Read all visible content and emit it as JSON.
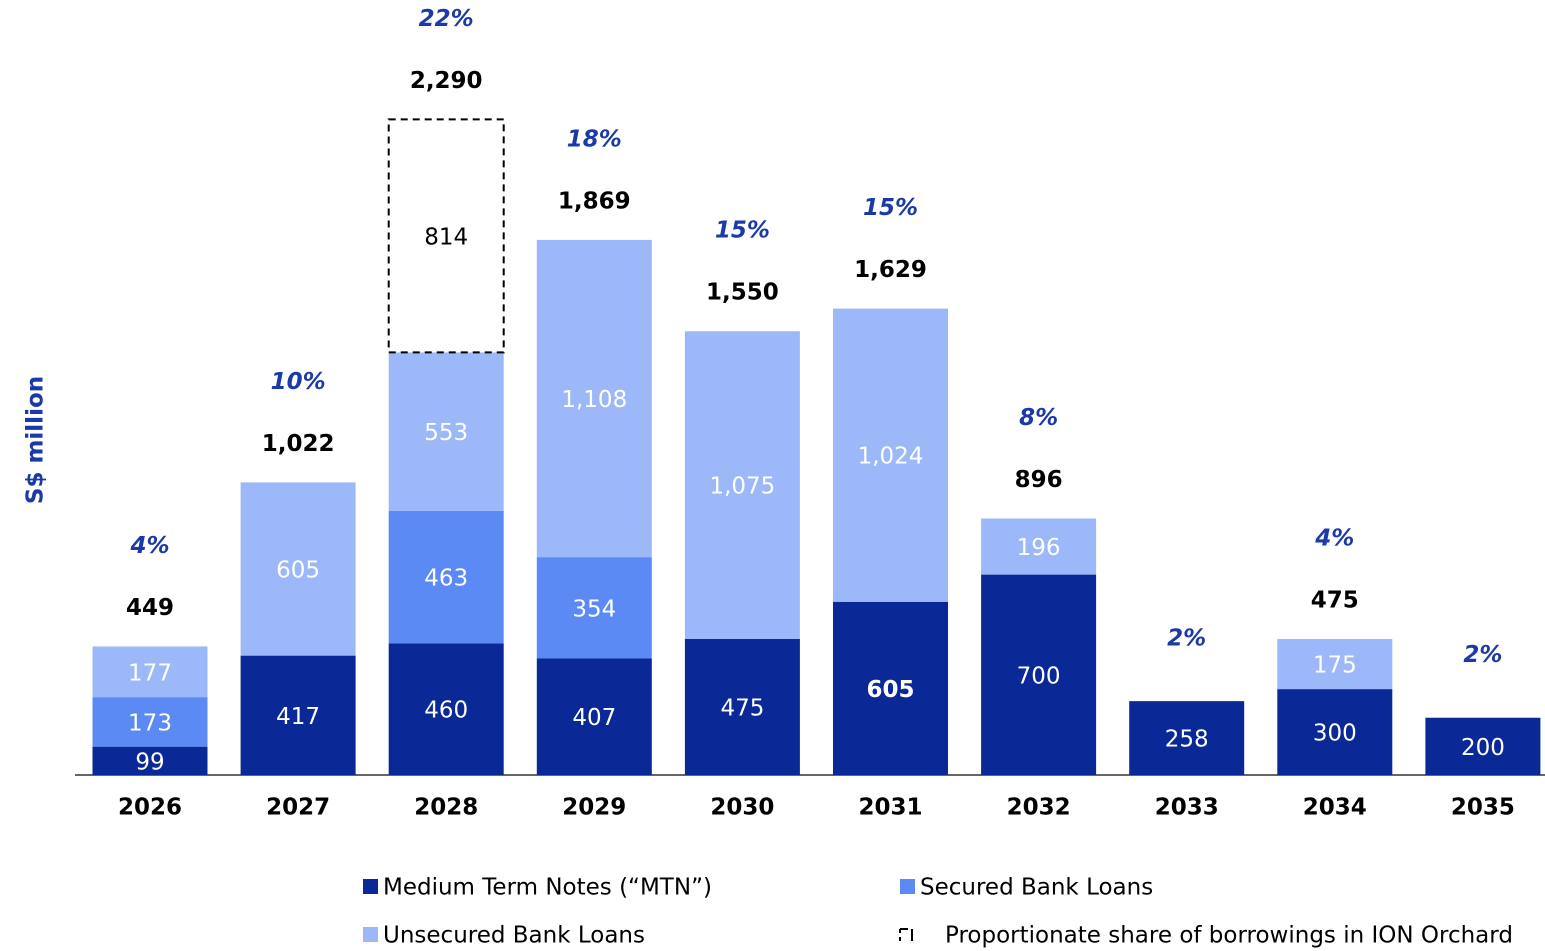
{
  "chart_data": {
    "type": "stacked_bar",
    "y_label": "S$ million",
    "categories": [
      "2026",
      "2027",
      "2028",
      "2029",
      "2030",
      "2031",
      "2032",
      "2033",
      "2034",
      "2035"
    ],
    "series": [
      {
        "name": "Medium Term Notes (“MTN”)",
        "color": "#0a2896",
        "label_color": "#ffffff",
        "values": [
          99,
          417,
          460,
          407,
          475,
          605,
          700,
          258,
          300,
          200
        ]
      },
      {
        "name": "Secured Bank Loans",
        "color": "#5b8af5",
        "label_color": "#ffffff",
        "values": [
          173,
          null,
          463,
          354,
          null,
          null,
          null,
          null,
          null,
          null
        ]
      },
      {
        "name": "Unsecured Bank Loans",
        "color": "#9db8f9",
        "label_color": "#ffffff",
        "values": [
          177,
          605,
          553,
          1108,
          1075,
          1024,
          196,
          null,
          175,
          null
        ],
        "value_labels": [
          "177",
          "605",
          "553",
          "1,108",
          "1,075",
          "1,024",
          "196",
          null,
          "175",
          null
        ]
      },
      {
        "name": "Proportionate share of borrowings in ION Orchard",
        "color": "none",
        "label_color": "#000000",
        "dashed": true,
        "values": [
          null,
          null,
          814,
          null,
          null,
          null,
          null,
          null,
          null,
          null
        ]
      }
    ],
    "totals": {
      "values": [
        449,
        1022,
        2290,
        1869,
        1550,
        1629,
        896,
        null,
        475,
        null
      ],
      "value_labels": [
        "449",
        "1,022",
        "2,290",
        "1,869",
        "1,550",
        "1,629",
        "896",
        null,
        "475",
        null
      ]
    },
    "shares": {
      "values": [
        4,
        10,
        22,
        18,
        15,
        15,
        8,
        2,
        4,
        2
      ],
      "value_labels": [
        "4%",
        "10%",
        "22%",
        "18%",
        "15%",
        "15%",
        "8%",
        "2%",
        "4%",
        "2%"
      ]
    }
  }
}
